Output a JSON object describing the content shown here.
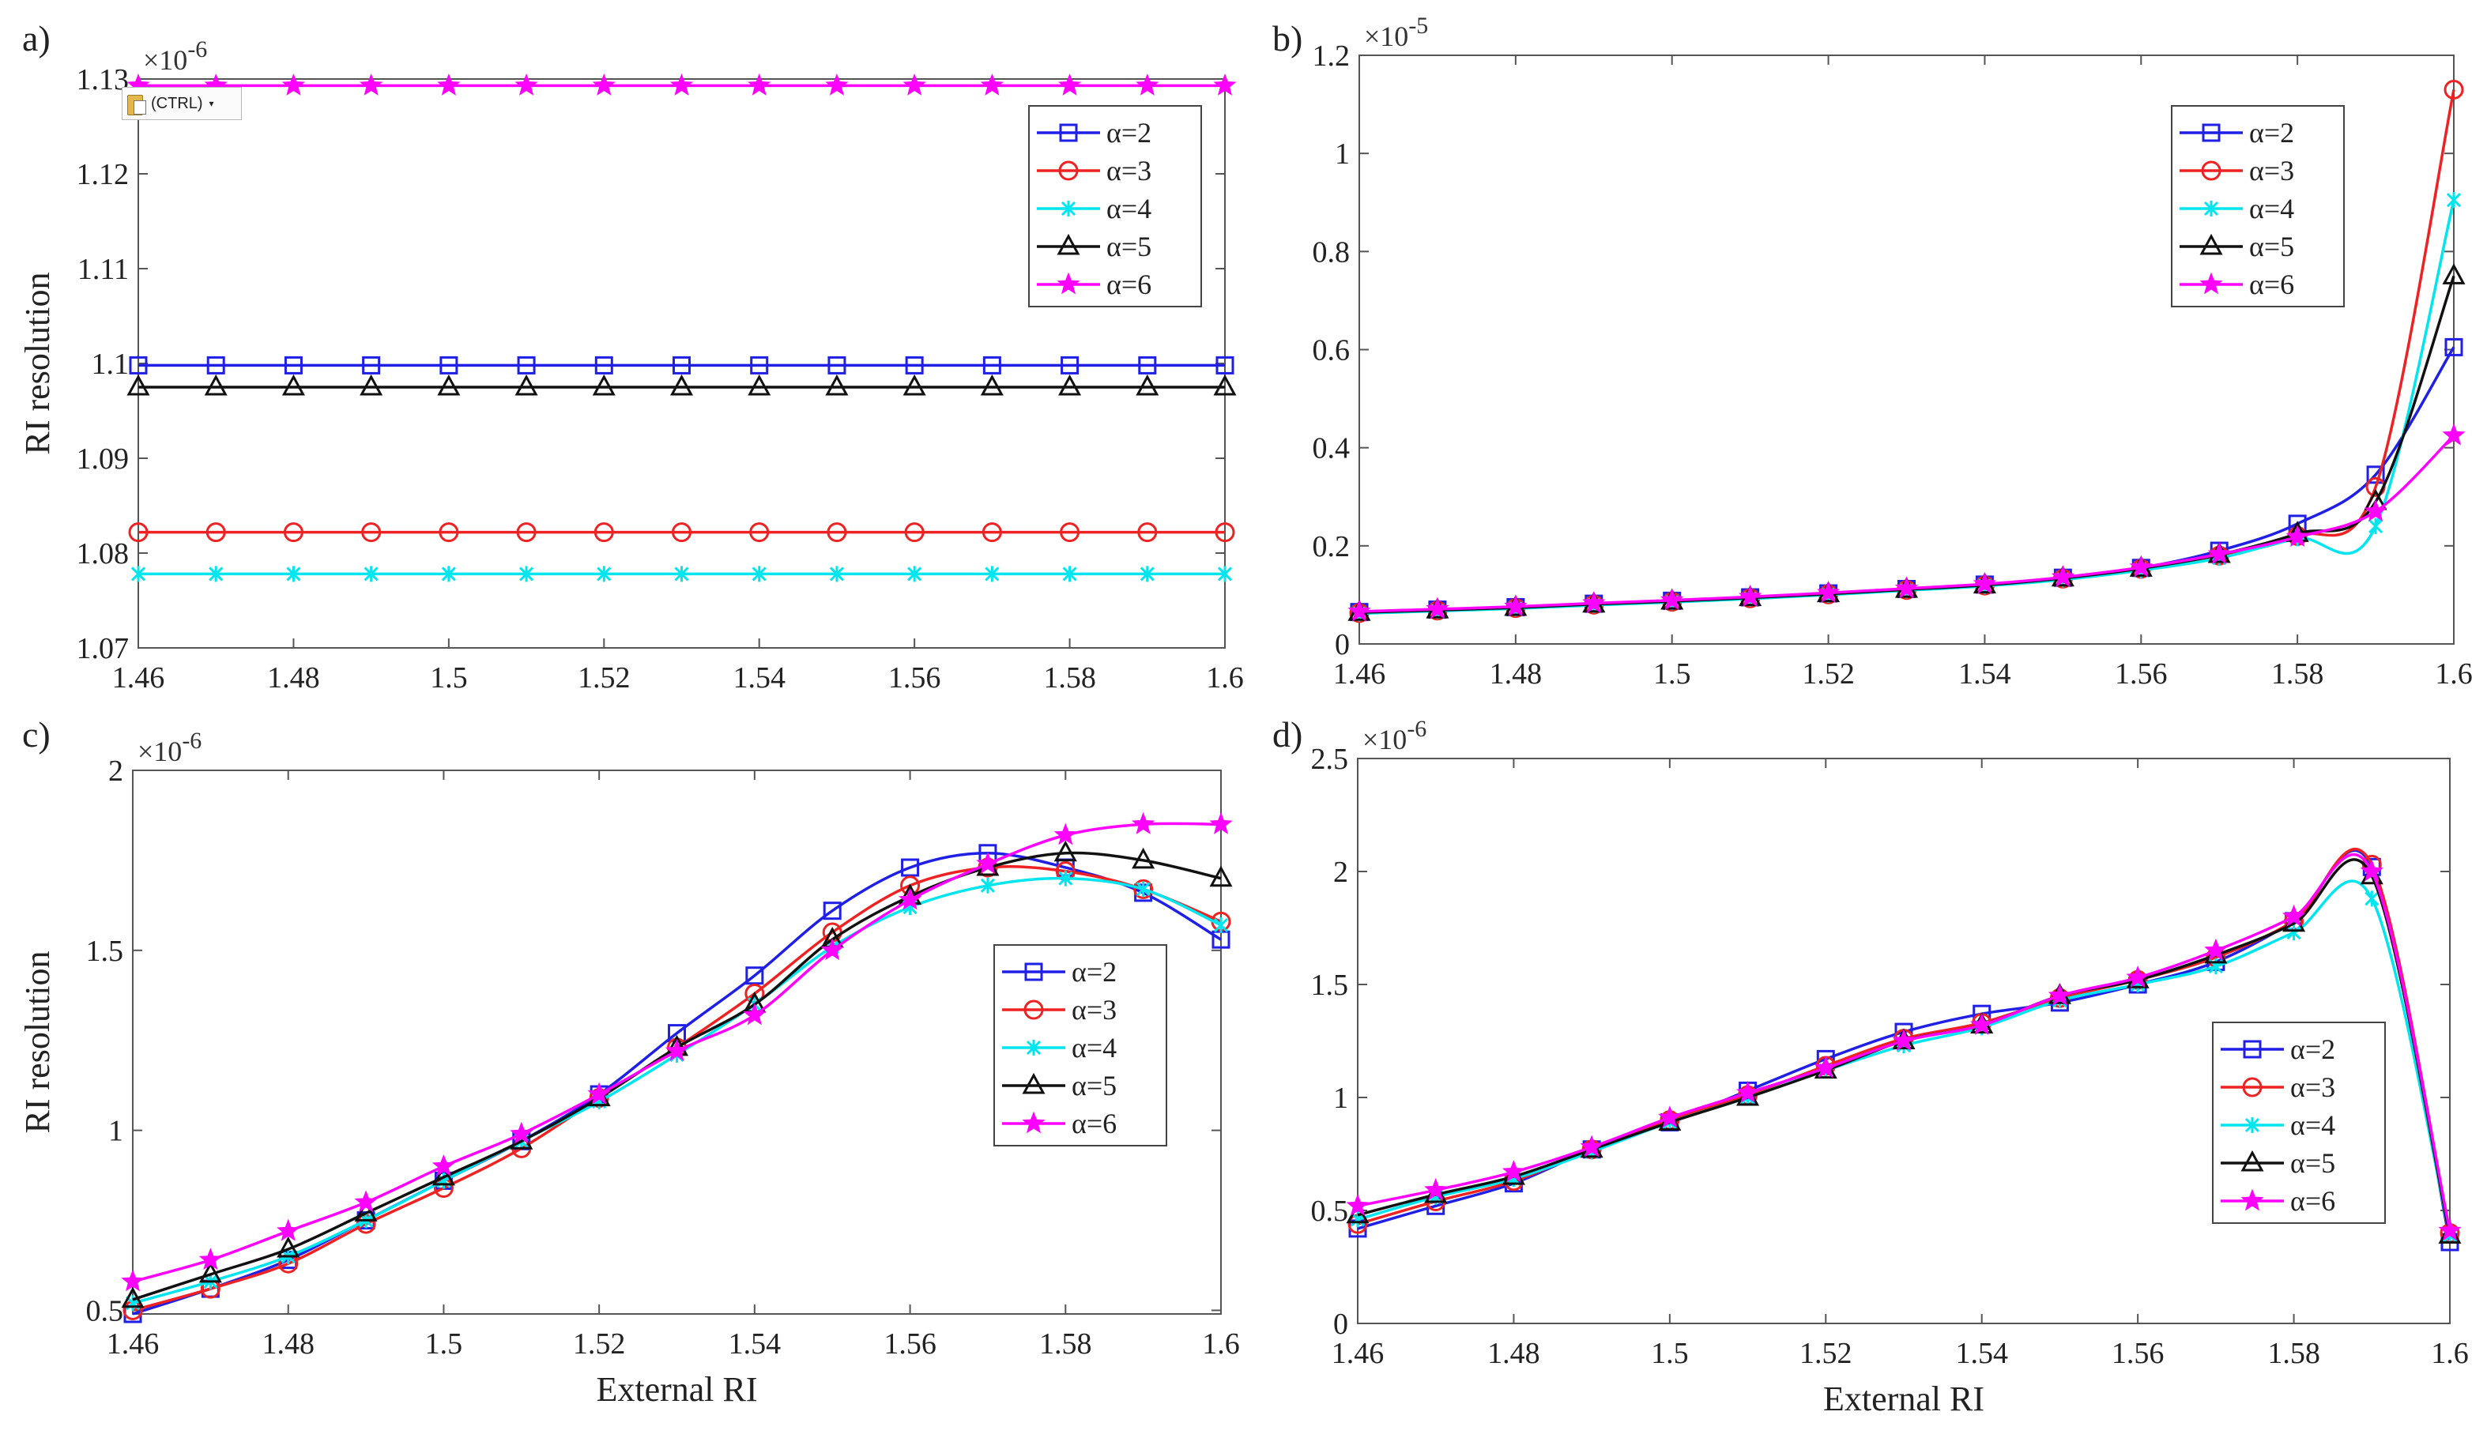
{
  "paste_badge": {
    "label": "(CTRL)",
    "icon": "clipboard-icon"
  },
  "colors": {
    "a2": "#1f1fe6",
    "a3": "#ee2222",
    "a4": "#00e5ee",
    "a5": "#111111",
    "a6": "#ff00ff"
  },
  "chart_data": [
    {
      "type": "line",
      "panel_label": "a)",
      "exponent": "×10",
      "exponent_power": "-6",
      "xlabel": "",
      "ylabel": "RI resolution",
      "xlim": [
        1.46,
        1.6
      ],
      "ylim": [
        1.07,
        1.13
      ],
      "scale": 1e-06,
      "xticks": [
        1.46,
        1.48,
        1.5,
        1.52,
        1.54,
        1.56,
        1.58,
        1.6
      ],
      "xtick_labels": [
        "1.46",
        "1.48",
        "1.5",
        "1.52",
        "1.54",
        "1.56",
        "1.58",
        "1.6"
      ],
      "yticks": [
        1.07,
        1.08,
        1.09,
        1.1,
        1.11,
        1.12,
        1.13
      ],
      "ytick_labels": [
        "1.07",
        "1.08",
        "1.09",
        "1.1",
        "1.11",
        "1.12",
        "1.13"
      ],
      "legend_position": "top-right",
      "x": [
        1.46,
        1.47,
        1.48,
        1.49,
        1.5,
        1.51,
        1.52,
        1.53,
        1.54,
        1.55,
        1.56,
        1.57,
        1.58,
        1.59,
        1.6
      ],
      "series": [
        {
          "name": "α=2",
          "marker": "square",
          "values": [
            1.0998,
            1.0998,
            1.0998,
            1.0998,
            1.0998,
            1.0998,
            1.0998,
            1.0998,
            1.0998,
            1.0998,
            1.0998,
            1.0998,
            1.0998,
            1.0998,
            1.0998
          ]
        },
        {
          "name": "α=3",
          "marker": "circle",
          "values": [
            1.0822,
            1.0822,
            1.0822,
            1.0822,
            1.0822,
            1.0822,
            1.0822,
            1.0822,
            1.0822,
            1.0822,
            1.0822,
            1.0822,
            1.0822,
            1.0822,
            1.0822
          ]
        },
        {
          "name": "α=4",
          "marker": "x",
          "values": [
            1.0778,
            1.0778,
            1.0778,
            1.0778,
            1.0778,
            1.0778,
            1.0778,
            1.0778,
            1.0778,
            1.0778,
            1.0778,
            1.0778,
            1.0778,
            1.0778,
            1.0778
          ]
        },
        {
          "name": "α=5",
          "marker": "triangle",
          "values": [
            1.0975,
            1.0975,
            1.0975,
            1.0975,
            1.0975,
            1.0975,
            1.0975,
            1.0975,
            1.0975,
            1.0975,
            1.0975,
            1.0975,
            1.0975,
            1.0975,
            1.0975
          ]
        },
        {
          "name": "α=6",
          "marker": "star",
          "values": [
            1.1293,
            1.1293,
            1.1293,
            1.1293,
            1.1293,
            1.1293,
            1.1293,
            1.1293,
            1.1293,
            1.1293,
            1.1293,
            1.1293,
            1.1293,
            1.1293,
            1.1293
          ]
        }
      ]
    },
    {
      "type": "line",
      "panel_label": "b)",
      "exponent": "×10",
      "exponent_power": "-5",
      "xlabel": "",
      "ylabel": "",
      "xlim": [
        1.46,
        1.6
      ],
      "ylim": [
        0,
        1.2
      ],
      "scale": 1e-05,
      "xticks": [
        1.46,
        1.48,
        1.5,
        1.52,
        1.54,
        1.56,
        1.58,
        1.6
      ],
      "xtick_labels": [
        "1.46",
        "1.48",
        "1.5",
        "1.52",
        "1.54",
        "1.56",
        "1.58",
        "1.6"
      ],
      "yticks": [
        0,
        0.2,
        0.4,
        0.6,
        0.8,
        1,
        1.2
      ],
      "ytick_labels": [
        "0",
        "0.2",
        "0.4",
        "0.6",
        "0.8",
        "1",
        "1.2"
      ],
      "legend_position": "top-right",
      "x": [
        1.46,
        1.47,
        1.48,
        1.49,
        1.5,
        1.51,
        1.52,
        1.53,
        1.54,
        1.55,
        1.56,
        1.57,
        1.58,
        1.59,
        1.6
      ],
      "series": [
        {
          "name": "α=2",
          "marker": "square",
          "values": [
            0.065,
            0.07,
            0.075,
            0.082,
            0.088,
            0.095,
            0.103,
            0.112,
            0.121,
            0.135,
            0.155,
            0.19,
            0.245,
            0.345,
            0.605
          ]
        },
        {
          "name": "α=3",
          "marker": "circle",
          "values": [
            0.063,
            0.068,
            0.073,
            0.08,
            0.086,
            0.093,
            0.101,
            0.11,
            0.119,
            0.133,
            0.153,
            0.18,
            0.22,
            0.32,
            1.13
          ]
        },
        {
          "name": "α=4",
          "marker": "x",
          "values": [
            0.062,
            0.067,
            0.072,
            0.079,
            0.085,
            0.092,
            0.1,
            0.109,
            0.118,
            0.131,
            0.15,
            0.175,
            0.215,
            0.24,
            0.905
          ]
        },
        {
          "name": "α=5",
          "marker": "triangle",
          "values": [
            0.064,
            0.069,
            0.074,
            0.081,
            0.087,
            0.094,
            0.102,
            0.111,
            0.12,
            0.134,
            0.154,
            0.182,
            0.225,
            0.29,
            0.75
          ]
        },
        {
          "name": "α=6",
          "marker": "star",
          "values": [
            0.066,
            0.071,
            0.076,
            0.083,
            0.089,
            0.096,
            0.104,
            0.113,
            0.122,
            0.136,
            0.156,
            0.183,
            0.218,
            0.27,
            0.425
          ]
        }
      ]
    },
    {
      "type": "line",
      "panel_label": "c)",
      "exponent": "×10",
      "exponent_power": "-6",
      "xlabel": "External RI",
      "ylabel": "RI resolution",
      "xlim": [
        1.46,
        1.6
      ],
      "ylim": [
        0.49,
        2.0
      ],
      "scale": 1e-06,
      "xticks": [
        1.46,
        1.48,
        1.5,
        1.52,
        1.54,
        1.56,
        1.58,
        1.6
      ],
      "xtick_labels": [
        "1.46",
        "1.48",
        "1.5",
        "1.52",
        "1.54",
        "1.56",
        "1.58",
        "1.6"
      ],
      "yticks": [
        0.5,
        1,
        1.5,
        2
      ],
      "ytick_labels": [
        "0.5",
        "1",
        "1.5",
        "2"
      ],
      "legend_position": "center-right",
      "x": [
        1.46,
        1.47,
        1.48,
        1.49,
        1.5,
        1.51,
        1.52,
        1.53,
        1.54,
        1.55,
        1.56,
        1.57,
        1.58,
        1.59,
        1.6
      ],
      "series": [
        {
          "name": "α=2",
          "marker": "square",
          "values": [
            0.49,
            0.56,
            0.64,
            0.75,
            0.86,
            0.97,
            1.1,
            1.27,
            1.43,
            1.61,
            1.73,
            1.77,
            1.73,
            1.66,
            1.53
          ]
        },
        {
          "name": "α=3",
          "marker": "circle",
          "values": [
            0.5,
            0.56,
            0.63,
            0.74,
            0.84,
            0.95,
            1.09,
            1.23,
            1.38,
            1.55,
            1.68,
            1.73,
            1.72,
            1.67,
            1.58
          ]
        },
        {
          "name": "α=4",
          "marker": "x",
          "values": [
            0.52,
            0.58,
            0.65,
            0.75,
            0.86,
            0.97,
            1.08,
            1.21,
            1.35,
            1.51,
            1.62,
            1.68,
            1.7,
            1.67,
            1.57
          ]
        },
        {
          "name": "α=5",
          "marker": "triangle",
          "values": [
            0.53,
            0.6,
            0.67,
            0.77,
            0.87,
            0.97,
            1.09,
            1.23,
            1.35,
            1.53,
            1.65,
            1.73,
            1.77,
            1.75,
            1.7
          ]
        },
        {
          "name": "α=6",
          "marker": "star",
          "values": [
            0.58,
            0.64,
            0.72,
            0.8,
            0.9,
            0.99,
            1.1,
            1.22,
            1.32,
            1.5,
            1.64,
            1.74,
            1.82,
            1.85,
            1.85
          ]
        }
      ]
    },
    {
      "type": "line",
      "panel_label": "d)",
      "exponent": "×10",
      "exponent_power": "-6",
      "xlabel": "External RI",
      "ylabel": "",
      "xlim": [
        1.46,
        1.6
      ],
      "ylim": [
        0,
        2.5
      ],
      "scale": 1e-06,
      "xticks": [
        1.46,
        1.48,
        1.5,
        1.52,
        1.54,
        1.56,
        1.58,
        1.6
      ],
      "xtick_labels": [
        "1.46",
        "1.48",
        "1.5",
        "1.52",
        "1.54",
        "1.56",
        "1.58",
        "1.6"
      ],
      "yticks": [
        0,
        0.5,
        1,
        1.5,
        2,
        2.5
      ],
      "ytick_labels": [
        "0",
        "0.5",
        "1",
        "1.5",
        "2",
        "2.5"
      ],
      "legend_position": "bottom-right",
      "x": [
        1.46,
        1.47,
        1.48,
        1.49,
        1.5,
        1.51,
        1.52,
        1.53,
        1.54,
        1.55,
        1.56,
        1.57,
        1.58,
        1.59,
        1.6
      ],
      "series": [
        {
          "name": "α=2",
          "marker": "square",
          "values": [
            0.42,
            0.52,
            0.62,
            0.77,
            0.89,
            1.03,
            1.17,
            1.29,
            1.37,
            1.42,
            1.5,
            1.6,
            1.78,
            2.02,
            0.36
          ]
        },
        {
          "name": "α=3",
          "marker": "circle",
          "values": [
            0.44,
            0.54,
            0.63,
            0.77,
            0.9,
            1.01,
            1.14,
            1.26,
            1.33,
            1.44,
            1.52,
            1.62,
            1.78,
            2.03,
            0.4
          ]
        },
        {
          "name": "α=4",
          "marker": "x",
          "values": [
            0.46,
            0.56,
            0.64,
            0.76,
            0.89,
            1.0,
            1.12,
            1.23,
            1.31,
            1.43,
            1.5,
            1.58,
            1.73,
            1.88,
            0.39
          ]
        },
        {
          "name": "α=5",
          "marker": "triangle",
          "values": [
            0.48,
            0.57,
            0.65,
            0.77,
            0.89,
            1.0,
            1.12,
            1.25,
            1.32,
            1.45,
            1.52,
            1.63,
            1.77,
            1.98,
            0.39
          ]
        },
        {
          "name": "α=6",
          "marker": "star",
          "values": [
            0.52,
            0.59,
            0.67,
            0.78,
            0.91,
            1.02,
            1.13,
            1.25,
            1.32,
            1.45,
            1.53,
            1.65,
            1.8,
            2.0,
            0.41
          ]
        }
      ]
    }
  ]
}
